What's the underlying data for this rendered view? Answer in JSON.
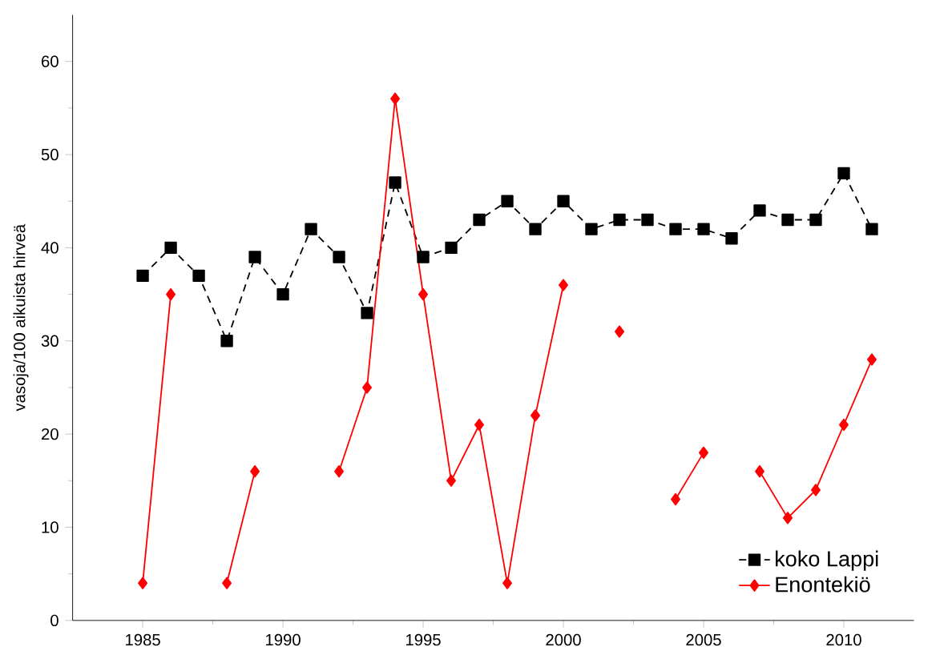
{
  "chart_data": {
    "type": "line",
    "ylabel": "vasoja/100 aikuista hirveä",
    "x": [
      1985,
      1986,
      1987,
      1988,
      1989,
      1990,
      1991,
      1992,
      1993,
      1994,
      1995,
      1996,
      1997,
      1998,
      1999,
      2000,
      2001,
      2002,
      2003,
      2004,
      2005,
      2006,
      2007,
      2008,
      2009,
      2010,
      2011
    ],
    "series": [
      {
        "name": "koko Lappi",
        "color": "#000000",
        "marker": "square",
        "line_style": "dashed",
        "values": [
          37,
          40,
          37,
          30,
          39,
          35,
          42,
          39,
          33,
          47,
          39,
          40,
          43,
          45,
          42,
          45,
          42,
          43,
          43,
          42,
          42,
          41,
          44,
          43,
          43,
          48,
          42
        ]
      },
      {
        "name": "Enontekiö",
        "color": "#ff0000",
        "marker": "diamond",
        "line_style": "solid",
        "values": [
          4,
          35,
          null,
          4,
          16,
          null,
          null,
          16,
          25,
          56,
          35,
          15,
          21,
          4,
          22,
          36,
          null,
          31,
          null,
          13,
          18,
          null,
          16,
          11,
          14,
          21,
          28
        ]
      }
    ],
    "xlim": [
      1982.5,
      2012.5
    ],
    "ylim": [
      0,
      65
    ],
    "xticks": [
      1985,
      1990,
      1995,
      2000,
      2005,
      2010
    ],
    "yticks": [
      0,
      10,
      20,
      30,
      40,
      50,
      60
    ],
    "grid": false,
    "legend": "bottom right"
  }
}
